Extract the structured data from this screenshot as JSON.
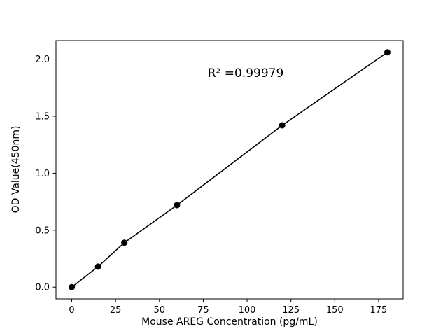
{
  "chart_data": {
    "type": "scatter",
    "title": "",
    "xlabel": "Mouse AREG Concentration (pg/mL)",
    "ylabel": "OD Value(450nm)",
    "x": [
      0,
      15,
      30,
      60,
      120,
      180
    ],
    "y": [
      0.0,
      0.18,
      0.39,
      0.72,
      1.42,
      2.06
    ],
    "xlim": [
      -9,
      189
    ],
    "ylim": [
      -0.103,
      2.163
    ],
    "xticks": {
      "values": [
        0,
        25,
        50,
        75,
        100,
        125,
        150,
        175
      ],
      "labels": [
        "0",
        "25",
        "50",
        "75",
        "100",
        "125",
        "150",
        "175"
      ]
    },
    "yticks": {
      "values": [
        0.0,
        0.5,
        1.0,
        1.5,
        2.0
      ],
      "labels": [
        "0.0",
        "0.5",
        "1.0",
        "1.5",
        "2.0"
      ]
    },
    "annotation": {
      "text": "R² =0.99979",
      "x": 99,
      "y": 1.88
    },
    "line": true,
    "grid": false,
    "legend": null,
    "marker_color": "#000000",
    "line_color": "#000000",
    "frame_color": "#000000",
    "background_color": "#ffffff"
  }
}
